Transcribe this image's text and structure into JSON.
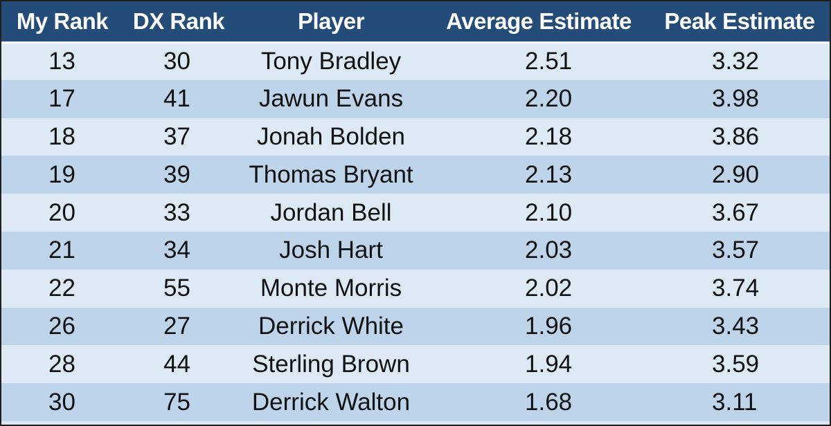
{
  "headers": {
    "my_rank": "My Rank",
    "dx_rank": "DX Rank",
    "player": "Player",
    "average_estimate": "Average Estimate",
    "peak_estimate": "Peak Estimate"
  },
  "rows": [
    {
      "my_rank": "13",
      "dx_rank": "30",
      "player": "Tony Bradley",
      "average_estimate": "2.51",
      "peak_estimate": "3.32"
    },
    {
      "my_rank": "17",
      "dx_rank": "41",
      "player": "Jawun Evans",
      "average_estimate": "2.20",
      "peak_estimate": "3.98"
    },
    {
      "my_rank": "18",
      "dx_rank": "37",
      "player": "Jonah Bolden",
      "average_estimate": "2.18",
      "peak_estimate": "3.86"
    },
    {
      "my_rank": "19",
      "dx_rank": "39",
      "player": "Thomas Bryant",
      "average_estimate": "2.13",
      "peak_estimate": "2.90"
    },
    {
      "my_rank": "20",
      "dx_rank": "33",
      "player": "Jordan Bell",
      "average_estimate": "2.10",
      "peak_estimate": "3.67"
    },
    {
      "my_rank": "21",
      "dx_rank": "34",
      "player": "Josh Hart",
      "average_estimate": "2.03",
      "peak_estimate": "3.57"
    },
    {
      "my_rank": "22",
      "dx_rank": "55",
      "player": "Monte Morris",
      "average_estimate": "2.02",
      "peak_estimate": "3.74"
    },
    {
      "my_rank": "26",
      "dx_rank": "27",
      "player": "Derrick White",
      "average_estimate": "1.96",
      "peak_estimate": "3.43"
    },
    {
      "my_rank": "28",
      "dx_rank": "44",
      "player": "Sterling Brown",
      "average_estimate": "1.94",
      "peak_estimate": "3.59"
    },
    {
      "my_rank": "30",
      "dx_rank": "75",
      "player": "Derrick Walton",
      "average_estimate": "1.68",
      "peak_estimate": "3.11"
    }
  ],
  "colors": {
    "header_bg": "#234c78",
    "row_light": "#dde9f5",
    "row_dark": "#bdd4ea"
  }
}
